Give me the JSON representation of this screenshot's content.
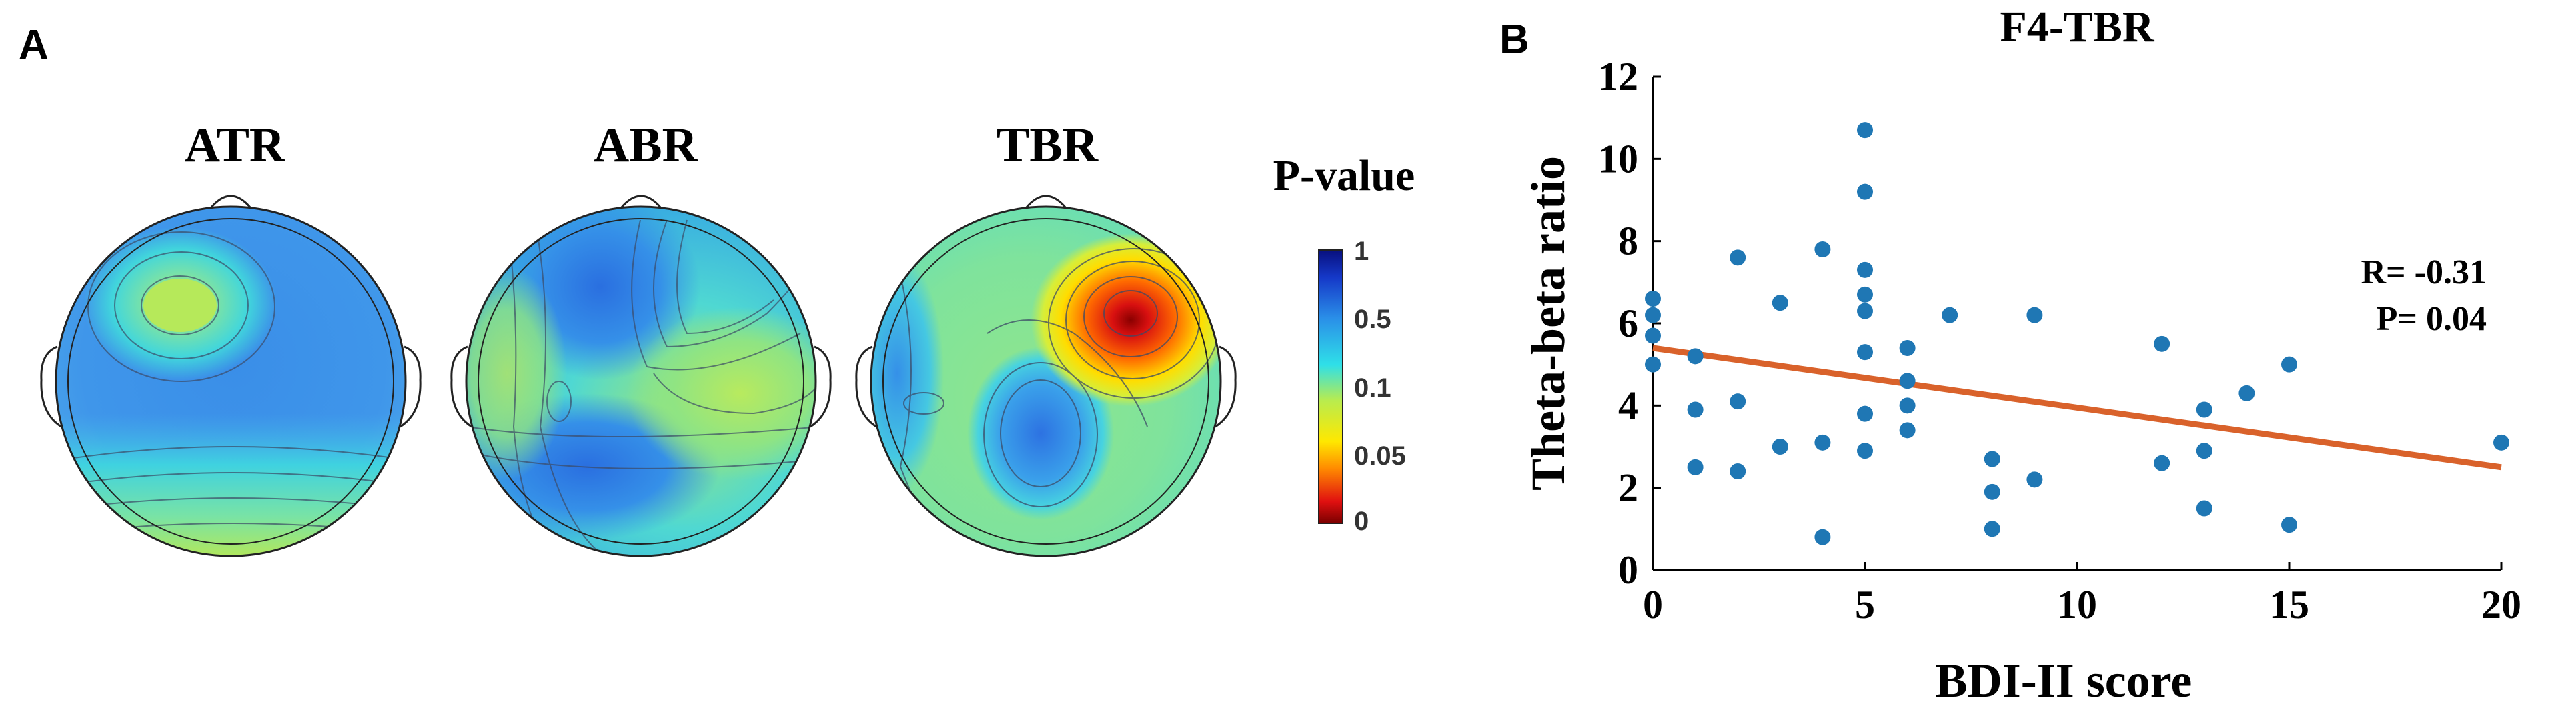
{
  "panel_a": {
    "letter": "A",
    "maps": [
      {
        "title": "ATR"
      },
      {
        "title": "ABR"
      },
      {
        "title": "TBR"
      }
    ],
    "colorbar": {
      "title": "P-value",
      "ticks": [
        "1",
        "0.5",
        "0.1",
        "0.05",
        "0"
      ]
    }
  },
  "panel_b": {
    "letter": "B",
    "annotation": {
      "r_text": "R= -0.31",
      "p_text": "P= 0.04"
    }
  },
  "colors": {
    "points": "#1f77b4",
    "fit_line": "#d9622b",
    "axis": "#000000"
  },
  "chart_data": {
    "type": "scatter",
    "title": "F4-TBR",
    "xlabel": "BDI-II score",
    "ylabel": "Theta-beta ratio",
    "xlim": [
      0,
      20
    ],
    "ylim": [
      0,
      12
    ],
    "xticks": [
      0,
      5,
      10,
      15,
      20
    ],
    "yticks": [
      0,
      2,
      4,
      6,
      8,
      10,
      12
    ],
    "points": [
      [
        0,
        6.6
      ],
      [
        0,
        6.2
      ],
      [
        0,
        5.7
      ],
      [
        0,
        5.0
      ],
      [
        1,
        5.2
      ],
      [
        1,
        3.9
      ],
      [
        1,
        2.5
      ],
      [
        2,
        7.6
      ],
      [
        2,
        4.1
      ],
      [
        2,
        2.4
      ],
      [
        3,
        6.5
      ],
      [
        3,
        3.0
      ],
      [
        4,
        7.8
      ],
      [
        4,
        3.1
      ],
      [
        4,
        0.8
      ],
      [
        5,
        10.7
      ],
      [
        5,
        9.2
      ],
      [
        5,
        7.3
      ],
      [
        5,
        6.7
      ],
      [
        5,
        6.3
      ],
      [
        5,
        5.3
      ],
      [
        5,
        3.8
      ],
      [
        5,
        2.9
      ],
      [
        6,
        5.4
      ],
      [
        6,
        4.6
      ],
      [
        6,
        4.0
      ],
      [
        6,
        3.4
      ],
      [
        7,
        6.2
      ],
      [
        8,
        2.7
      ],
      [
        8,
        1.9
      ],
      [
        8,
        1.0
      ],
      [
        9,
        6.2
      ],
      [
        9,
        2.2
      ],
      [
        12,
        5.5
      ],
      [
        12,
        2.6
      ],
      [
        13,
        3.9
      ],
      [
        13,
        2.9
      ],
      [
        13,
        1.5
      ],
      [
        14,
        4.3
      ],
      [
        15,
        5.0
      ],
      [
        15,
        1.1
      ],
      [
        20,
        3.1
      ]
    ],
    "fit_line": {
      "x": [
        0,
        20
      ],
      "y": [
        5.4,
        2.5
      ]
    },
    "r": -0.31,
    "p": 0.04
  }
}
